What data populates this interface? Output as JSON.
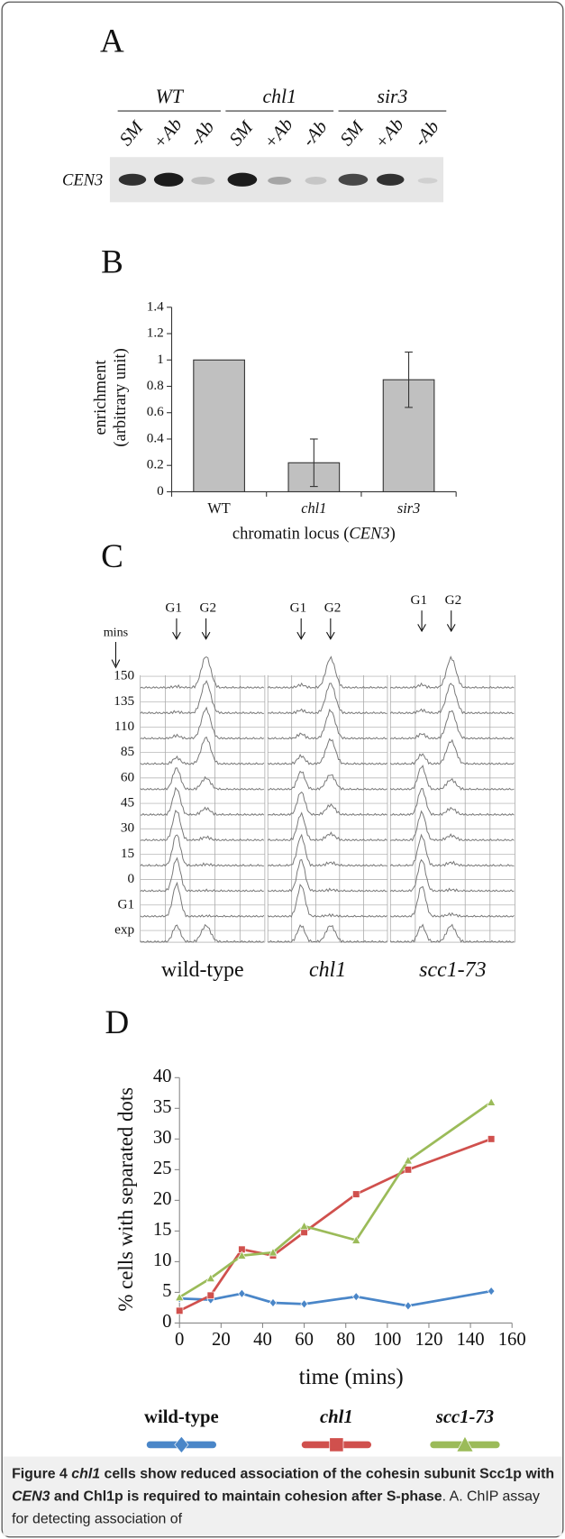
{
  "panel_a": {
    "label": "A",
    "groups": [
      "WT",
      "chl1",
      "sir3"
    ],
    "lanes": [
      "SM",
      "+Ab",
      "-Ab",
      "SM",
      "+Ab",
      "-Ab",
      "SM",
      "+Ab",
      "-Ab"
    ],
    "row_label": "CEN3"
  },
  "panel_c": {
    "label": "C",
    "time_label": "mins",
    "rows": [
      150,
      135,
      110,
      85,
      60,
      45,
      30,
      15,
      0,
      "G1",
      "exp"
    ],
    "columns": [
      {
        "name": "wild-type",
        "peaks": [
          "G1",
          "G2"
        ]
      },
      {
        "name": "chl1",
        "peaks": [
          "G1",
          "G2"
        ]
      },
      {
        "name": "scc1-73",
        "peaks": [
          "G1",
          "G2"
        ]
      }
    ]
  },
  "chart_data": [
    {
      "type": "bar",
      "title": "B",
      "y_label": [
        "enrichment",
        "(arbitrary unit)"
      ],
      "x_label": [
        "chromatin locus (",
        "CEN3",
        ")"
      ],
      "categories": [
        "WT",
        "chl1",
        "sir3"
      ],
      "values": [
        1,
        0.22,
        0.85
      ],
      "errors": [
        null,
        0.18,
        0.21
      ],
      "color": "#c0c0c0",
      "ylim": [
        0,
        1.4
      ],
      "yticks": [
        0,
        0.2,
        0.4,
        0.6,
        0.8,
        1,
        1.2,
        1.4
      ],
      "grid": false
    },
    {
      "type": "line",
      "title": "D",
      "y_label": "% cells with separated dots",
      "x_label": "time (mins)",
      "x": [
        0,
        15,
        30,
        45,
        60,
        85,
        110,
        150
      ],
      "series": [
        {
          "name": "wild-type",
          "color": "#4a86c8",
          "marker": "diamond",
          "values": [
            4,
            3.8,
            4.8,
            3.3,
            3.1,
            4.3,
            2.8,
            5.2
          ]
        },
        {
          "name": "chl1",
          "color": "#d0504d",
          "marker": "square",
          "values": [
            2,
            4.5,
            12,
            11,
            14.8,
            21,
            25,
            30
          ]
        },
        {
          "name": "scc1-73",
          "color": "#9bbb59",
          "marker": "triangle",
          "values": [
            4.2,
            7.3,
            11,
            11.5,
            15.8,
            13.5,
            26.5,
            36
          ]
        }
      ],
      "xlim": [
        0,
        160
      ],
      "xticks": [
        0,
        20,
        40,
        60,
        80,
        100,
        120,
        140,
        160
      ],
      "ylim": [
        0,
        40
      ],
      "yticks": [
        0,
        5,
        10,
        15,
        20,
        25,
        30,
        35,
        40
      ],
      "grid": false,
      "legend": "bottom"
    }
  ],
  "caption": {
    "label": "Figure 4",
    "title": [
      "chl1",
      " cells show reduced association of the cohesin subunit Scc1p with ",
      "CEN3",
      " and Chl1p is required to maintain cohesion after S-phase"
    ],
    "text": ". A. ChIP assay for detecting association of"
  }
}
